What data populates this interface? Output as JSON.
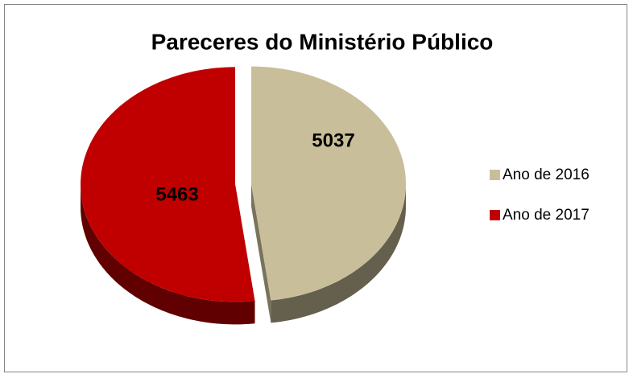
{
  "chart_data": {
    "type": "pie3d",
    "title": "Pareceres do Ministério Público",
    "categories": [
      "Ano de 2016",
      "Ano de 2017"
    ],
    "values": [
      5037,
      5463
    ],
    "colors": [
      "#c8bf9a",
      "#c00000"
    ],
    "legend": "right"
  }
}
